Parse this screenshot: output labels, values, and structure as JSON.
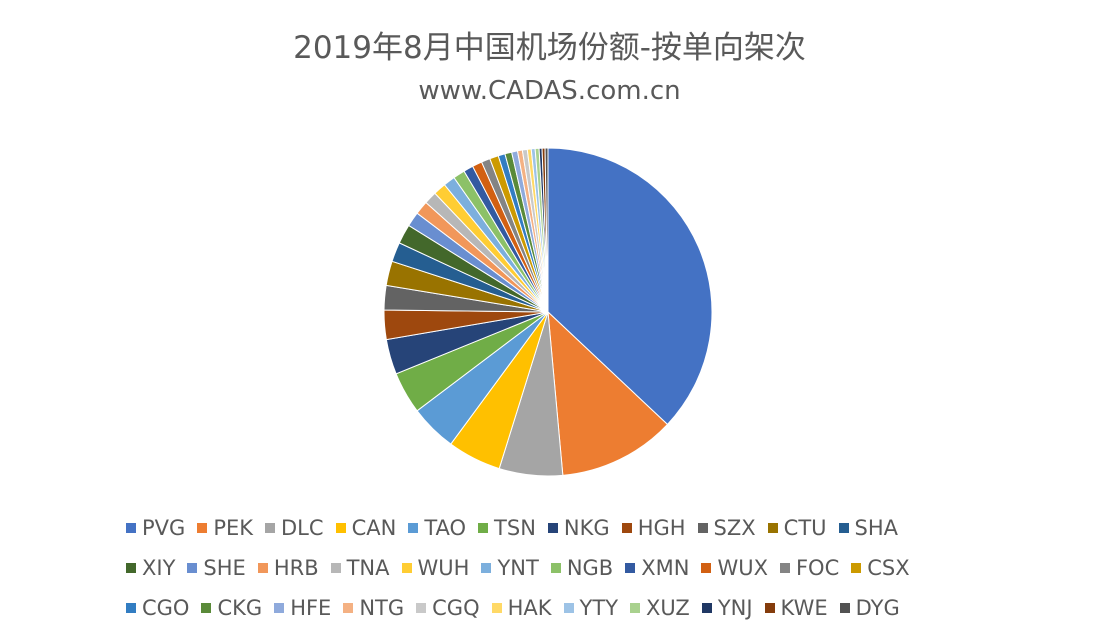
{
  "chart_data": {
    "type": "pie",
    "title": "2019年8月中国机场份额-按单向架次",
    "subtitle": "www.CADAS.com.cn",
    "legend_position": "bottom",
    "slices": [
      {
        "name": "PVG",
        "value": 38.5,
        "color": "#4472C4"
      },
      {
        "name": "PEK",
        "value": 12.0,
        "color": "#ED7D31"
      },
      {
        "name": "DLC",
        "value": 6.5,
        "color": "#A5A5A5"
      },
      {
        "name": "CAN",
        "value": 5.5,
        "color": "#FFC000"
      },
      {
        "name": "TAO",
        "value": 4.8,
        "color": "#5B9BD5"
      },
      {
        "name": "TSN",
        "value": 4.3,
        "color": "#70AD47"
      },
      {
        "name": "NKG",
        "value": 3.6,
        "color": "#264478"
      },
      {
        "name": "HGH",
        "value": 3.0,
        "color": "#9E480E"
      },
      {
        "name": "SZX",
        "value": 2.5,
        "color": "#636363"
      },
      {
        "name": "CTU",
        "value": 2.5,
        "color": "#997300"
      },
      {
        "name": "SHA",
        "value": 2.0,
        "color": "#255E91"
      },
      {
        "name": "XIY",
        "value": 2.0,
        "color": "#43682B"
      },
      {
        "name": "SHE",
        "value": 1.5,
        "color": "#698ED0"
      },
      {
        "name": "HRB",
        "value": 1.4,
        "color": "#F1975A"
      },
      {
        "name": "TNA",
        "value": 1.3,
        "color": "#B7B7B7"
      },
      {
        "name": "WUH",
        "value": 1.3,
        "color": "#FFCD33"
      },
      {
        "name": "YNT",
        "value": 1.2,
        "color": "#7CAFDD"
      },
      {
        "name": "NGB",
        "value": 1.2,
        "color": "#8CC168"
      },
      {
        "name": "XMN",
        "value": 1.0,
        "color": "#335AA1"
      },
      {
        "name": "WUX",
        "value": 1.0,
        "color": "#D26012"
      },
      {
        "name": "FOC",
        "value": 0.9,
        "color": "#848484"
      },
      {
        "name": "CSX",
        "value": 0.9,
        "color": "#CC9A00"
      },
      {
        "name": "CGO",
        "value": 0.7,
        "color": "#327DC2"
      },
      {
        "name": "CKG",
        "value": 0.7,
        "color": "#5A8A39"
      },
      {
        "name": "HFE",
        "value": 0.6,
        "color": "#8FAADC"
      },
      {
        "name": "NTG",
        "value": 0.5,
        "color": "#F4B183"
      },
      {
        "name": "CGQ",
        "value": 0.5,
        "color": "#C9C9C9"
      },
      {
        "name": "HAK",
        "value": 0.4,
        "color": "#FFD966"
      },
      {
        "name": "YTY",
        "value": 0.4,
        "color": "#9DC3E6"
      },
      {
        "name": "XUZ",
        "value": 0.4,
        "color": "#A9D18E"
      },
      {
        "name": "YNJ",
        "value": 0.3,
        "color": "#203864"
      },
      {
        "name": "KWE",
        "value": 0.3,
        "color": "#843C0C"
      },
      {
        "name": "DYG",
        "value": 0.3,
        "color": "#525252"
      }
    ]
  }
}
